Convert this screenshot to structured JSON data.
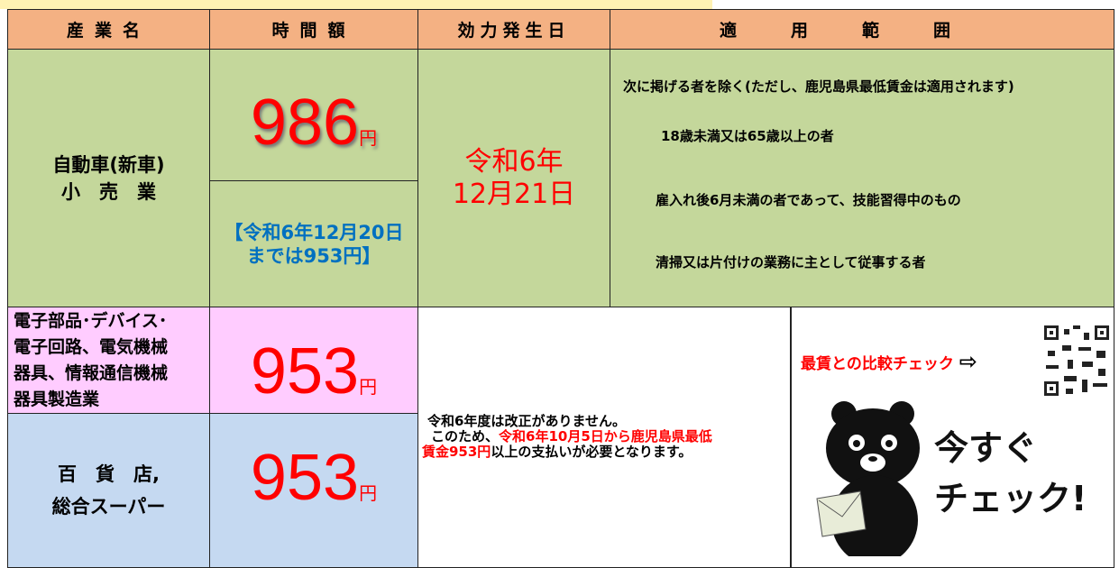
{
  "header": {
    "industry": "産業名",
    "amount": "時間額",
    "effective": "効力発生日",
    "scope": "適用範囲"
  },
  "rows": [
    {
      "industry": [
        "自動車(新車)",
        "小　売　業"
      ],
      "amount": "986",
      "unit": "円",
      "note": [
        "【令和6年12月20日",
        "までは953円】"
      ],
      "effective": [
        "令和6年",
        "12月21日"
      ],
      "scope": {
        "intro": "次に掲げる者を除く(ただし、鹿児島県最低賃金は適用されます)",
        "exclusions": [
          "18歳未満又は65歳以上の者",
          "雇入れ後6月未満の者であって、技能習得中のもの",
          "清掃又は片付けの業務に主として従事する者"
        ]
      }
    },
    {
      "industry": [
        "電子部品･デバイス･",
        "電子回路、電気機械",
        "器具、情報通信機械",
        "器具製造業"
      ],
      "amount": "953",
      "unit": "円"
    },
    {
      "industry": [
        "百　貨　店,",
        "総合スーパー"
      ],
      "amount": "953",
      "unit": "円"
    }
  ],
  "notice": {
    "line1": "令和6年度は改正がありません。",
    "line2_a": "このため、",
    "line2_b": "令和6年10月5日から鹿児島県最低",
    "line3_a": "賃金953円",
    "line3_b": "以上の支払いが必要となります。"
  },
  "check": {
    "label": "最賃との比較チェック",
    "arrow": "⇨",
    "banner": [
      "今すぐ",
      "チェック!"
    ]
  }
}
